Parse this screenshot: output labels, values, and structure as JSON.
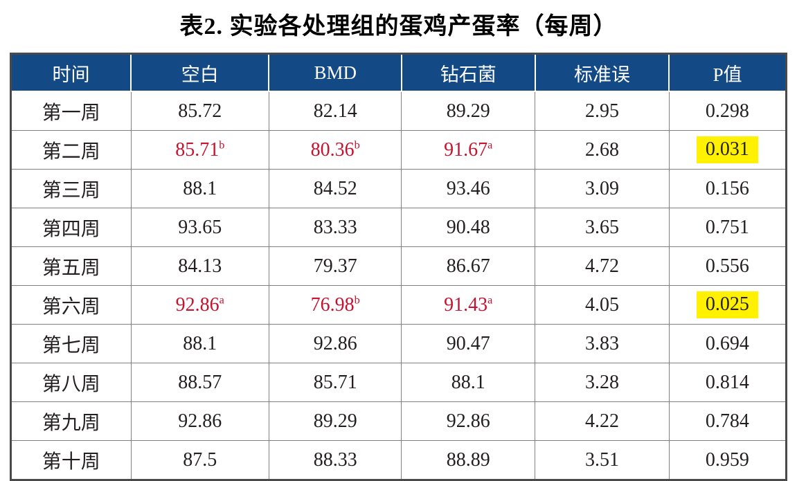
{
  "chart_data": {
    "type": "table",
    "title": "表2. 实验各处理组的蛋鸡产蛋率（每周）",
    "columns": [
      {
        "key": "time",
        "label": "时间"
      },
      {
        "key": "control",
        "label": "空白"
      },
      {
        "key": "bmd",
        "label": "BMD"
      },
      {
        "key": "diamond-bacteria",
        "label": "钻石菌"
      },
      {
        "key": "standard-error",
        "label": "标准误"
      },
      {
        "key": "p-value",
        "label": "P值"
      }
    ],
    "rows": [
      {
        "label": "第一周",
        "cells": [
          {
            "text": "85.72"
          },
          {
            "text": "82.14"
          },
          {
            "text": "89.29"
          },
          {
            "text": "2.95"
          },
          {
            "text": "0.298"
          }
        ]
      },
      {
        "label": "第二周",
        "cells": [
          {
            "text": "85.71",
            "sup": "b",
            "red": true
          },
          {
            "text": "80.36",
            "sup": "b",
            "red": true
          },
          {
            "text": "91.67",
            "sup": "a",
            "red": true
          },
          {
            "text": "2.68"
          },
          {
            "text": "0.031",
            "highlight": true
          }
        ]
      },
      {
        "label": "第三周",
        "cells": [
          {
            "text": "88.1"
          },
          {
            "text": "84.52"
          },
          {
            "text": "93.46"
          },
          {
            "text": "3.09"
          },
          {
            "text": "0.156"
          }
        ]
      },
      {
        "label": "第四周",
        "cells": [
          {
            "text": "93.65"
          },
          {
            "text": "83.33"
          },
          {
            "text": "90.48"
          },
          {
            "text": "3.65"
          },
          {
            "text": "0.751"
          }
        ]
      },
      {
        "label": "第五周",
        "cells": [
          {
            "text": "84.13"
          },
          {
            "text": "79.37"
          },
          {
            "text": "86.67"
          },
          {
            "text": "4.72"
          },
          {
            "text": "0.556"
          }
        ]
      },
      {
        "label": "第六周",
        "cells": [
          {
            "text": "92.86",
            "sup": "a",
            "red": true
          },
          {
            "text": "76.98",
            "sup": "b",
            "red": true
          },
          {
            "text": "91.43",
            "sup": "a",
            "red": true
          },
          {
            "text": "4.05"
          },
          {
            "text": "0.025",
            "highlight": true
          }
        ]
      },
      {
        "label": "第七周",
        "cells": [
          {
            "text": "88.1"
          },
          {
            "text": "92.86"
          },
          {
            "text": "90.47"
          },
          {
            "text": "3.83"
          },
          {
            "text": "0.694"
          }
        ]
      },
      {
        "label": "第八周",
        "cells": [
          {
            "text": "88.57"
          },
          {
            "text": "85.71"
          },
          {
            "text": "88.1"
          },
          {
            "text": "3.28"
          },
          {
            "text": "0.814"
          }
        ]
      },
      {
        "label": "第九周",
        "cells": [
          {
            "text": "92.86"
          },
          {
            "text": "89.29"
          },
          {
            "text": "92.86"
          },
          {
            "text": "4.22"
          },
          {
            "text": "0.784"
          }
        ]
      },
      {
        "label": "第十周",
        "cells": [
          {
            "text": "87.5"
          },
          {
            "text": "88.33"
          },
          {
            "text": "88.89"
          },
          {
            "text": "3.51"
          },
          {
            "text": "0.959"
          }
        ]
      }
    ]
  },
  "colors": {
    "header_background": "#134A86",
    "header_text": "#FFFFFF",
    "significant_text": "#C5132F",
    "highlight_background": "#FFF100",
    "body_text": "#231F20",
    "grid_line": "#808080",
    "outer_border": "#4A4A4A"
  }
}
